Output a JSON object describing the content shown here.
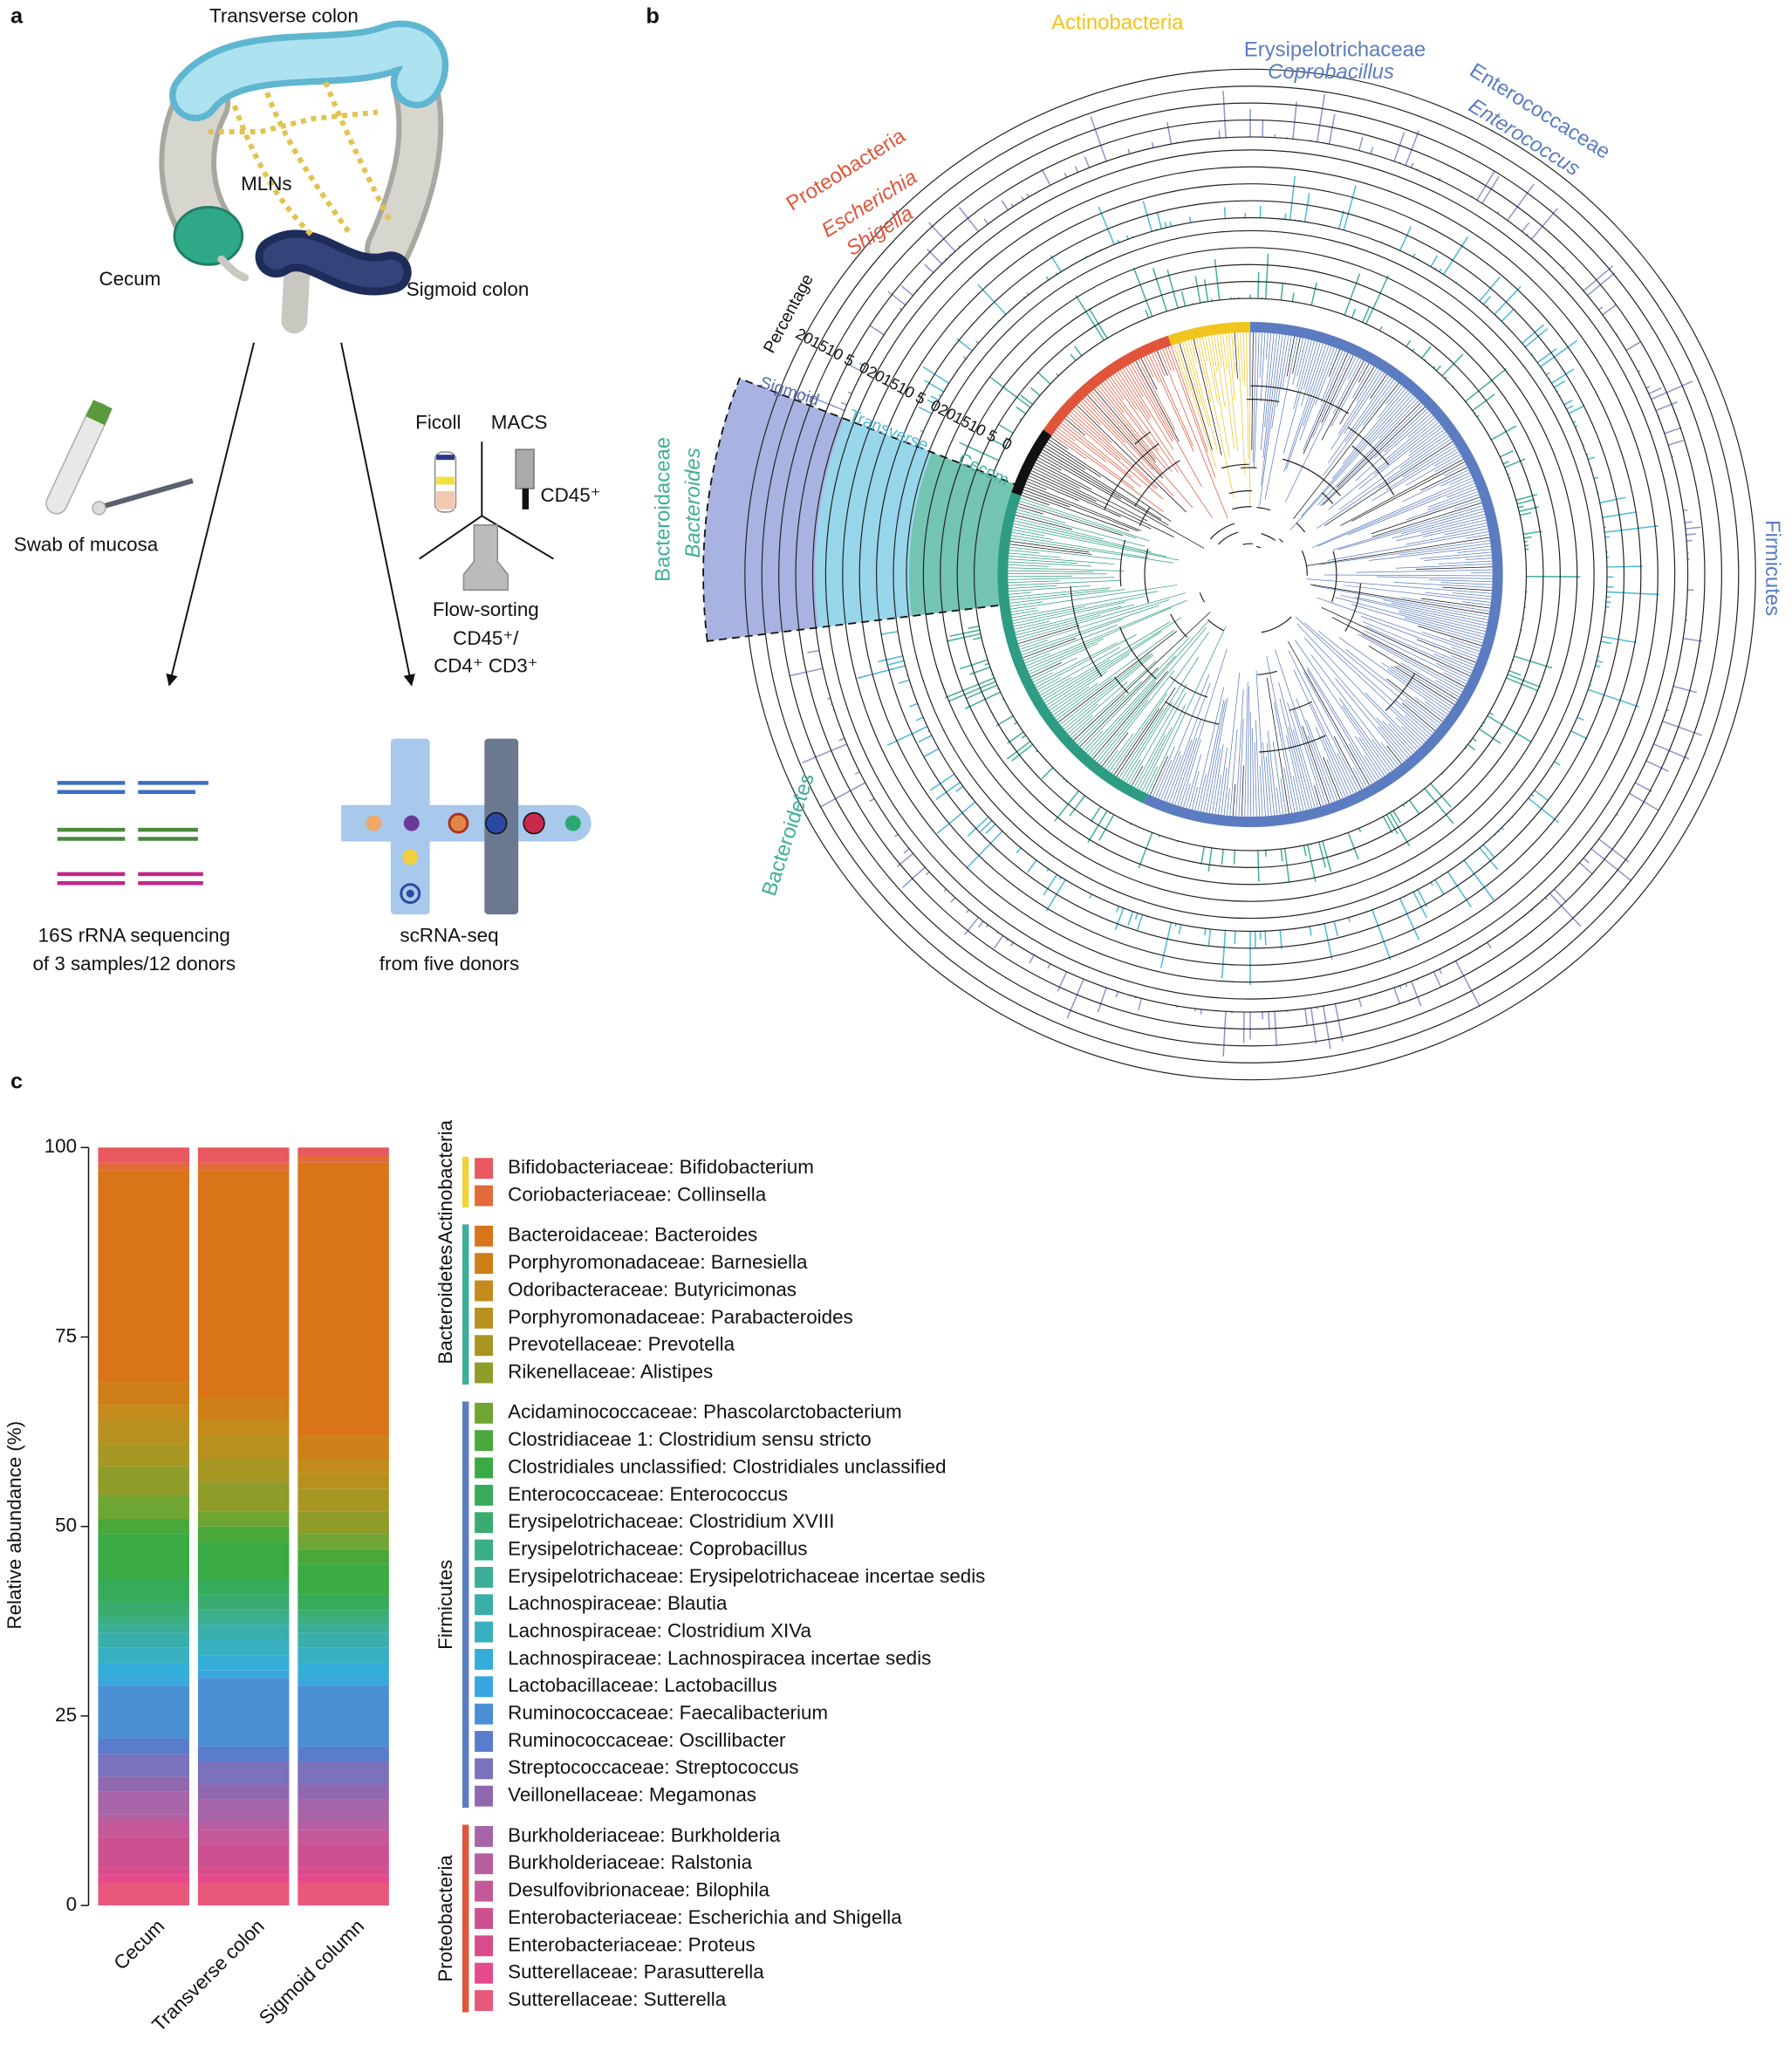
{
  "panel_labels": [
    "a",
    "b",
    "c"
  ],
  "panel_a": {
    "transverse_colon": "Transverse colon",
    "mlns": "MLNs",
    "cecum": "Cecum",
    "sigmoid_colon": "Sigmoid colon",
    "swab": "Swab of mucosa",
    "ficoll": "Ficoll",
    "macs": "MACS",
    "cd45": "CD45⁺",
    "flow_sorting": [
      "Flow-sorting",
      "CD45⁺/",
      "CD4⁺ CD3⁺"
    ],
    "sequencing": [
      "16S rRNA sequencing",
      "of 3 samples/12 donors"
    ],
    "scrnaseq": [
      "scRNA-seq",
      "from five donors"
    ]
  },
  "panel_b": {
    "actinobacteria": "Actinobacteria",
    "erysipelotrichaceae": "Erysipelotrichaceae",
    "coprobacillus": "Coprobacillus",
    "enterococcaceae": "Enterococcaceae",
    "enterococcus": "Enterococcus",
    "proteobacteria": "Proteobacteria",
    "escherichia": "Escherichia",
    "shigella": "Shigella",
    "percentage": "Percentage",
    "sigmoid": "Sigmoid",
    "transverse": "Transverse",
    "cecum": "Cecum",
    "bacteroidaceae": "Bacteroidaceae",
    "bacteroides": "Bacteroides",
    "firmicutes": "Firmicutes",
    "bacteroidetes": "Bacteroidetes",
    "percentage_ticks": [
      0,
      5,
      10,
      15,
      20
    ]
  },
  "chart_data": {
    "type": "stacked_bar",
    "y_label": "Relative abundance (%)",
    "categories": [
      "Cecum",
      "Transverse colon",
      "Sigmoid column"
    ],
    "ylim": [
      0,
      100
    ],
    "yticks": [
      0,
      25,
      50,
      75,
      100
    ],
    "groups": [
      {
        "name": "Actinobacteria",
        "color": "#f2d23b",
        "series": [
          {
            "name": "Bifidobacteriaceae: Bifidobacterium",
            "color": "#e8585e",
            "values": [
              2,
              2,
              1
            ]
          },
          {
            "name": "Coriobacteriaceae: Collinsella",
            "color": "#e36a3a",
            "values": [
              1,
              1,
              1
            ]
          }
        ]
      },
      {
        "name": "Bacteroidetes",
        "color": "#3fae9a",
        "series": [
          {
            "name": "Bacteroidaceae: Bacteroides",
            "color": "#d97418",
            "values": [
              28,
              30,
              36
            ]
          },
          {
            "name": "Porphyromonadaceae: Barnesiella",
            "color": "#cf7f18",
            "values": [
              3,
              3,
              3
            ]
          },
          {
            "name": "Odoribacteraceae: Butyricimonas",
            "color": "#c48a1c",
            "values": [
              2,
              2,
              2
            ]
          },
          {
            "name": "Porphyromonadaceae: Parabacteroides",
            "color": "#b8901f",
            "values": [
              3,
              3,
              2
            ]
          },
          {
            "name": "Prevotellaceae: Prevotella",
            "color": "#a89622",
            "values": [
              3,
              3,
              3
            ]
          },
          {
            "name": "Rikenellaceae: Alistipes",
            "color": "#8f9c2a",
            "values": [
              4,
              4,
              3
            ]
          }
        ]
      },
      {
        "name": "Firmicutes",
        "color": "#5b7cc0",
        "series": [
          {
            "name": "Acidaminococcaceae: Phascolarctobacterium",
            "color": "#6fa532",
            "values": [
              3,
              2,
              2
            ]
          },
          {
            "name": "Clostridiaceae 1: Clostridium sensu stricto",
            "color": "#4aa83a",
            "values": [
              2,
              2,
              2
            ]
          },
          {
            "name": "Clostridiales unclassified: Clostridiales unclassified",
            "color": "#3aaa44",
            "values": [
              6,
              5,
              4
            ]
          },
          {
            "name": "Enterococcaceae: Enterococcus",
            "color": "#36ab5a",
            "values": [
              3,
              2,
              2
            ]
          },
          {
            "name": "Erysipelotrichaceae: Clostridium  XVIII",
            "color": "#3aac70",
            "values": [
              2,
              2,
              1
            ]
          },
          {
            "name": "Erysipelotrichaceae: Coprobacillus",
            "color": "#3aae84",
            "values": [
              1,
              1,
              1
            ]
          },
          {
            "name": "Erysipelotrichaceae: Erysipelotrichaceae incertae sedis",
            "color": "#3aae96",
            "values": [
              1,
              1,
              1
            ]
          },
          {
            "name": "Lachnospiraceae: Blautia",
            "color": "#3aaeaa",
            "values": [
              2,
              2,
              2
            ]
          },
          {
            "name": "Lachnospiraceae: Clostridium  XIVa",
            "color": "#38b0c0",
            "values": [
              2,
              2,
              2
            ]
          },
          {
            "name": "Lachnospiraceae: Lachnospiracea incertae sedis",
            "color": "#34aed8",
            "values": [
              2,
              2,
              2
            ]
          },
          {
            "name": "Lactobacillaceae: Lactobacillus",
            "color": "#3aa6e0",
            "values": [
              1,
              1,
              1
            ]
          },
          {
            "name": "Ruminococcaceae: Faecalibacterium",
            "color": "#4a8fd4",
            "values": [
              7,
              9,
              8
            ]
          },
          {
            "name": "Ruminococcaceae: Oscillibacter",
            "color": "#5a7ccc",
            "values": [
              2,
              2,
              2
            ]
          },
          {
            "name": "Streptococcaceae: Streptococcus",
            "color": "#7a72bc",
            "values": [
              3,
              3,
              3
            ]
          },
          {
            "name": "Veillonellaceae: Megamonas",
            "color": "#9068b0",
            "values": [
              2,
              2,
              2
            ]
          }
        ]
      },
      {
        "name": "Proteobacteria",
        "color": "#e0553a",
        "series": [
          {
            "name": "Burkholderiaceae: Burkholderia",
            "color": "#a864a8",
            "values": [
              3,
              3,
              3
            ]
          },
          {
            "name": "Burkholderiaceae: Ralstonia",
            "color": "#b65ea0",
            "values": [
              1,
              1,
              1
            ]
          },
          {
            "name": "Desulfovibrionaceae: Bilophila",
            "color": "#c45898",
            "values": [
              2,
              2,
              2
            ]
          },
          {
            "name": "Enterobacteriaceae: Escherichia and Shigella",
            "color": "#cc5090",
            "values": [
              4,
              3,
              3
            ]
          },
          {
            "name": "Enterobacteriaceae: Proteus",
            "color": "#d84c8c",
            "values": [
              1,
              1,
              1
            ]
          },
          {
            "name": "Sutterellaceae: Parasutterella",
            "color": "#e64a8a",
            "values": [
              1,
              1,
              1
            ]
          },
          {
            "name": "Sutterellaceae: Sutterella",
            "color": "#e8587a",
            "values": [
              3,
              3,
              3
            ]
          }
        ]
      }
    ]
  }
}
